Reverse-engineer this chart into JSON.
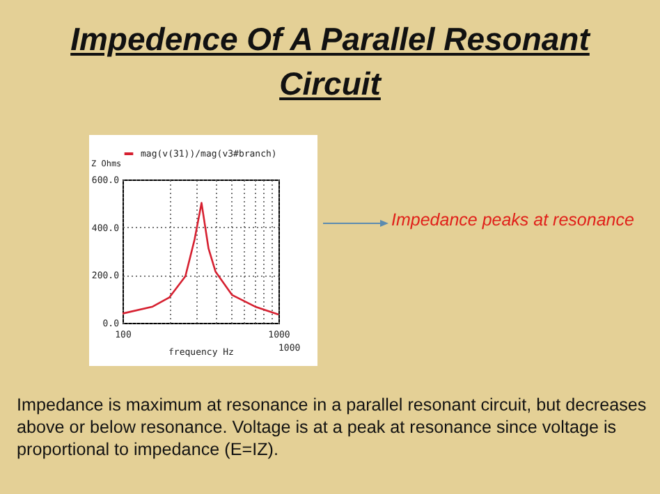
{
  "chart_data": {
    "type": "line",
    "title": "Impedence Of A Parallel Resonant Circuit",
    "xlabel": "frequency   Hz",
    "ylabel": "Z Ohms",
    "x": [
      100,
      156,
      200,
      253,
      290,
      321,
      356,
      395,
      503,
      708,
      1000
    ],
    "series": [
      {
        "name": "mag(v(31))/mag(v3#branch)",
        "color": "#d62030",
        "values": [
          39,
          68,
          107,
          195,
          350,
          502,
          311,
          214,
          117,
          68,
          35
        ]
      }
    ],
    "log": "x",
    "xlim": [
      100,
      1000
    ],
    "xticks": [
      100,
      {
        "value": 200,
        "label": null
      },
      {
        "value": 300,
        "label": null
      },
      {
        "value": 400,
        "label": null
      },
      {
        "value": 500,
        "label": null
      },
      {
        "value": 600,
        "label": null
      },
      {
        "value": 700,
        "label": null
      },
      {
        "value": 800,
        "label": null
      },
      {
        "value": 900,
        "label": null
      },
      1000
    ],
    "ylim": [
      0,
      600
    ],
    "yticks": [
      {
        "value": 0,
        "label": "0.0"
      },
      {
        "value": 200,
        "label": "200.0"
      },
      {
        "value": 400,
        "label": "400.0"
      },
      {
        "value": 600,
        "label": "600.0"
      }
    ],
    "grid": true,
    "legend": "top",
    "marker": "none",
    "line_style": "solid",
    "annotations": [
      "Impedance peaks at resonance",
      "Impedance is maximum at resonance in a parallel resonant circuit, but decreases above or below resonance. Voltage is at a peak at resonance since voltage is proportional to impedance (E=IZ).",
      "1000"
    ]
  }
}
